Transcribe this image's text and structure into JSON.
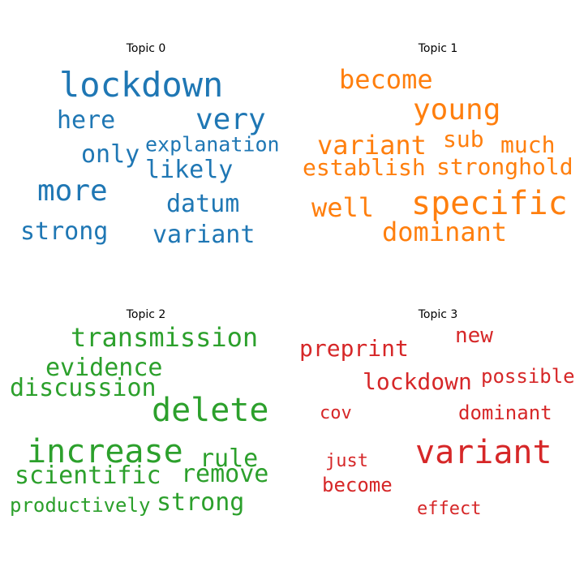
{
  "chart_data": [
    {
      "type": "wordcloud",
      "title": "Topic 0",
      "color": "#1f77b4",
      "words": [
        {
          "text": "lockdown",
          "weight": 1.0
        },
        {
          "text": "very",
          "weight": 0.85
        },
        {
          "text": "more",
          "weight": 0.85
        },
        {
          "text": "here",
          "weight": 0.72
        },
        {
          "text": "only",
          "weight": 0.72
        },
        {
          "text": "likely",
          "weight": 0.72
        },
        {
          "text": "datum",
          "weight": 0.72
        },
        {
          "text": "strong",
          "weight": 0.72
        },
        {
          "text": "variant",
          "weight": 0.72
        },
        {
          "text": "explanation",
          "weight": 0.6
        }
      ]
    },
    {
      "type": "wordcloud",
      "title": "Topic 1",
      "color": "#ff7f0e",
      "words": [
        {
          "text": "specific",
          "weight": 1.0
        },
        {
          "text": "young",
          "weight": 0.9
        },
        {
          "text": "become",
          "weight": 0.8
        },
        {
          "text": "variant",
          "weight": 0.8
        },
        {
          "text": "well",
          "weight": 0.8
        },
        {
          "text": "dominant",
          "weight": 0.8
        },
        {
          "text": "establish",
          "weight": 0.7
        },
        {
          "text": "sub",
          "weight": 0.7
        },
        {
          "text": "much",
          "weight": 0.7
        },
        {
          "text": "stronghold",
          "weight": 0.7
        }
      ]
    },
    {
      "type": "wordcloud",
      "title": "Topic 2",
      "color": "#2ca02c",
      "words": [
        {
          "text": "increase",
          "weight": 1.0
        },
        {
          "text": "delete",
          "weight": 1.0
        },
        {
          "text": "transmission",
          "weight": 0.8
        },
        {
          "text": "evidence",
          "weight": 0.75
        },
        {
          "text": "discussion",
          "weight": 0.75
        },
        {
          "text": "rule",
          "weight": 0.75
        },
        {
          "text": "remove",
          "weight": 0.75
        },
        {
          "text": "scientific",
          "weight": 0.75
        },
        {
          "text": "strong",
          "weight": 0.75
        },
        {
          "text": "productively",
          "weight": 0.6
        }
      ]
    },
    {
      "type": "wordcloud",
      "title": "Topic 3",
      "color": "#d62728",
      "words": [
        {
          "text": "variant",
          "weight": 1.0
        },
        {
          "text": "lockdown",
          "weight": 0.7
        },
        {
          "text": "preprint",
          "weight": 0.7
        },
        {
          "text": "new",
          "weight": 0.65
        },
        {
          "text": "dominant",
          "weight": 0.6
        },
        {
          "text": "possible",
          "weight": 0.6
        },
        {
          "text": "become",
          "weight": 0.6
        },
        {
          "text": "effect",
          "weight": 0.55
        },
        {
          "text": "cov",
          "weight": 0.55
        },
        {
          "text": "just",
          "weight": 0.55
        }
      ]
    }
  ]
}
